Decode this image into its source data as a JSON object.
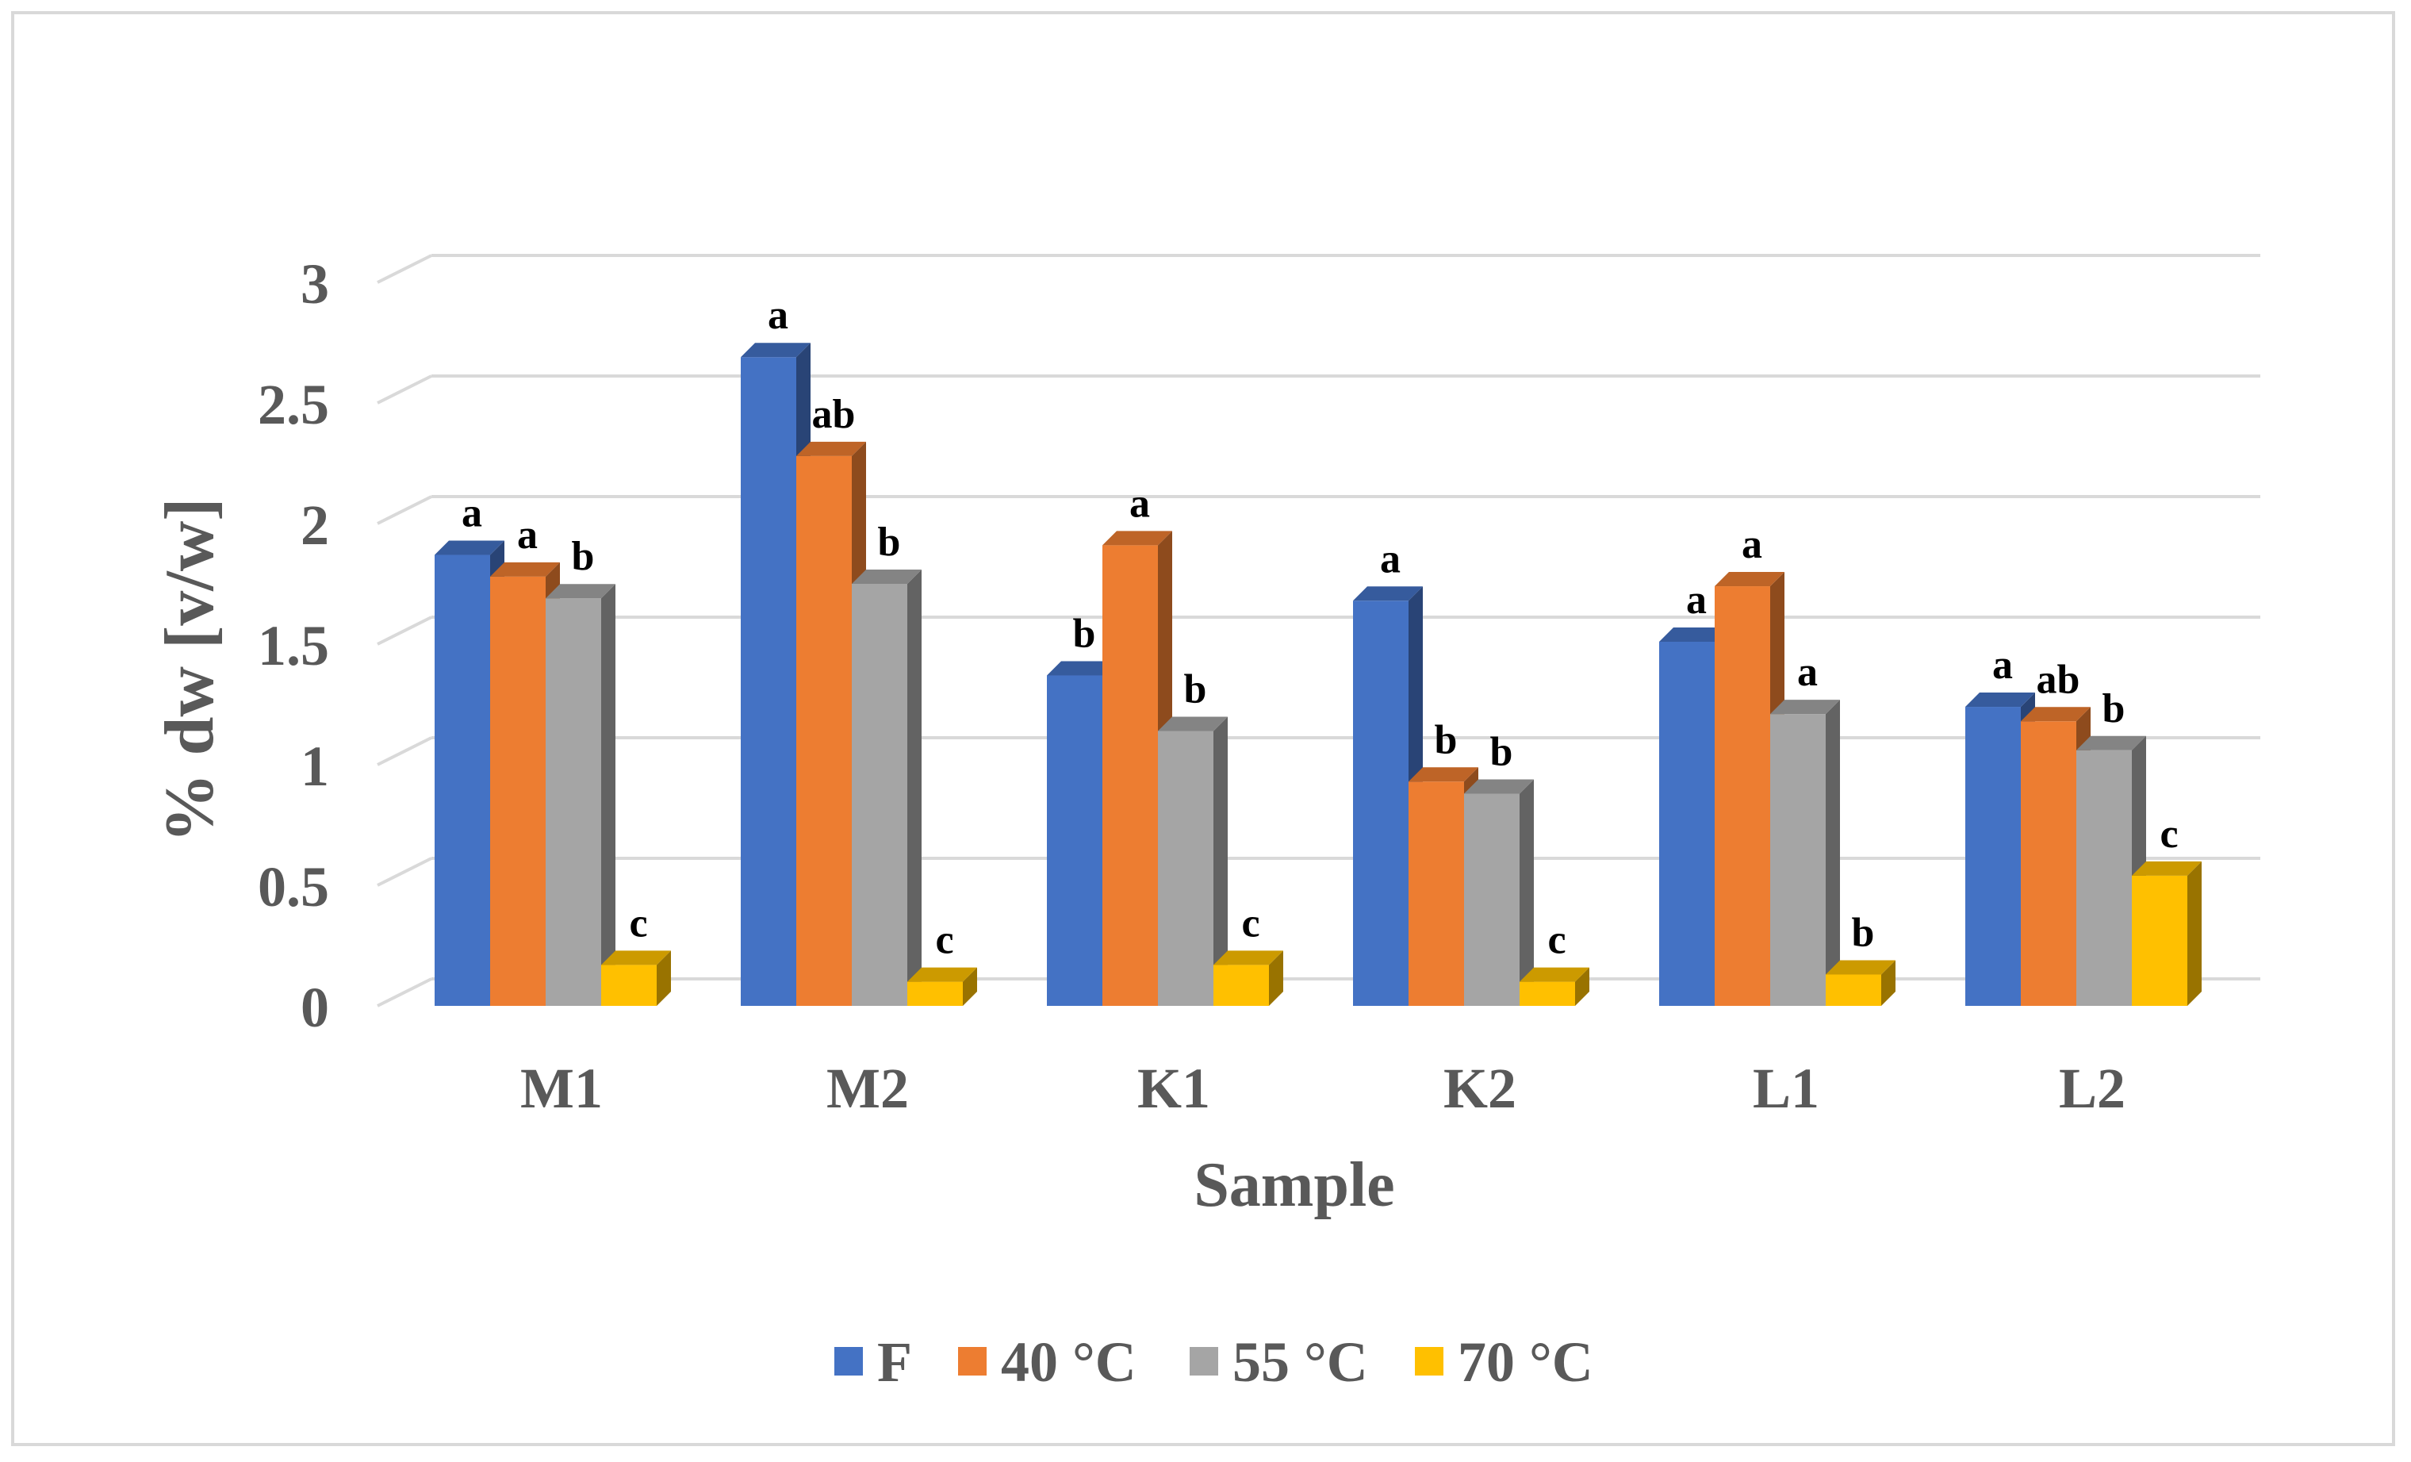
{
  "chart_data": {
    "type": "bar",
    "title": "",
    "xlabel": "Sample",
    "ylabel": "% dw [v/w]",
    "ylim": [
      0,
      3
    ],
    "yticks": [
      "0",
      "0.5",
      "1",
      "1.5",
      "2",
      "2.5",
      "3"
    ],
    "grid": true,
    "legend_position": "bottom",
    "categories": [
      "M1",
      "M2",
      "K1",
      "K2",
      "L1",
      "L2"
    ],
    "series": [
      {
        "name": "F",
        "color": "#4472c4",
        "values": [
          1.87,
          2.69,
          1.37,
          1.68,
          1.51,
          1.24
        ],
        "labels": [
          "a",
          "a",
          "b",
          "a",
          "a",
          "a"
        ]
      },
      {
        "name": "40 °C",
        "color": "#ed7d31",
        "values": [
          1.78,
          2.28,
          1.91,
          0.93,
          1.74,
          1.18
        ],
        "labels": [
          "a",
          "ab",
          "a",
          "b",
          "a",
          "ab"
        ]
      },
      {
        "name": "55 °C",
        "color": "#a5a5a5",
        "values": [
          1.69,
          1.75,
          1.14,
          0.88,
          1.21,
          1.06
        ],
        "labels": [
          "b",
          "b",
          "b",
          "b",
          "a",
          "b"
        ]
      },
      {
        "name": "70 °C",
        "color": "#ffc000",
        "values": [
          0.17,
          0.1,
          0.17,
          0.1,
          0.13,
          0.54
        ],
        "labels": [
          "c",
          "c",
          "c",
          "c",
          "b",
          "c"
        ]
      }
    ]
  }
}
